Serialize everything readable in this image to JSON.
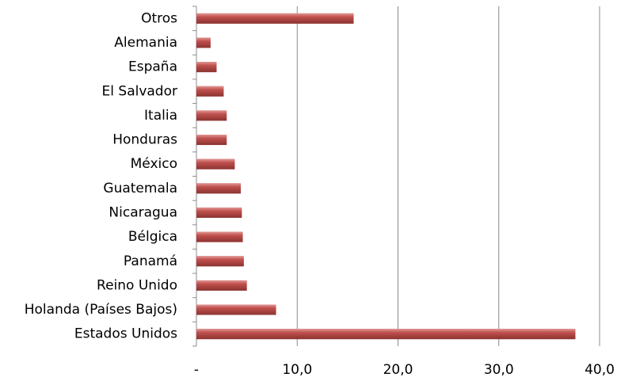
{
  "chart_data": {
    "type": "barh",
    "categories": [
      "Otros",
      "Alemania",
      "España",
      "El Salvador",
      "Italia",
      "Honduras",
      "México",
      "Guatemala",
      "Nicaragua",
      "Bélgica",
      "Panamá",
      "Reino Unido",
      "Holanda (Países Bajos)",
      "Estados Unidos"
    ],
    "values": [
      15.6,
      1.4,
      2.0,
      2.7,
      3.0,
      3.0,
      3.8,
      4.4,
      4.5,
      4.6,
      4.7,
      5.0,
      7.9,
      37.6
    ],
    "color": "#c0504d",
    "xlim": [
      0,
      40
    ],
    "xticks": [
      {
        "value": 0,
        "label": "-"
      },
      {
        "value": 10,
        "label": "10,0"
      },
      {
        "value": 20,
        "label": "20,0"
      },
      {
        "value": 30,
        "label": "30,0"
      },
      {
        "value": 40,
        "label": "40,0"
      }
    ],
    "grid": true
  }
}
